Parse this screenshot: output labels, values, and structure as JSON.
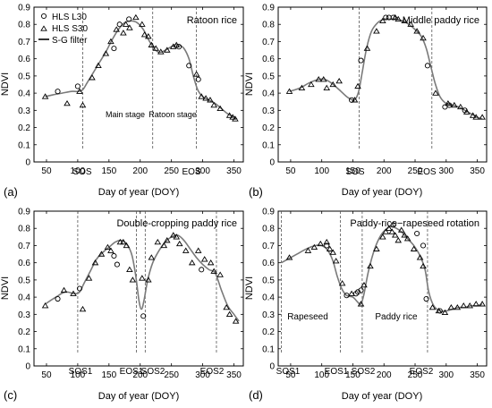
{
  "panels": [
    {
      "letter": "(a)",
      "title": "Ratoon rice",
      "xlabel": "Day of year (DOY)",
      "ylabel": "NDVI",
      "xlim": [
        30,
        365
      ],
      "ylim": [
        0,
        0.9
      ],
      "xticks": [
        50,
        100,
        150,
        200,
        250,
        300,
        350
      ],
      "xtick_labels": [
        "50",
        "100",
        "150",
        "200",
        "250",
        "300",
        "350"
      ],
      "yticks": [
        0,
        0.1,
        0.2,
        0.3,
        0.4,
        0.5,
        0.6,
        0.7,
        0.8,
        0.9
      ],
      "ytick_labels": [
        "0",
        "0.1",
        "0.2",
        "0.3",
        "0.4",
        "0.5",
        "0.6",
        "0.7",
        "0.8",
        "0.9"
      ],
      "legend": [
        "HLS L30",
        "HLS S30",
        "S-G filter"
      ],
      "vlines": [
        {
          "x": 108,
          "label": "SOS"
        },
        {
          "x": 220
        },
        {
          "x": 290,
          "label": "EOS"
        }
      ],
      "annotations": [
        {
          "text": "Main stage",
          "x": 162,
          "y": 0.44
        },
        {
          "text": "Ratoon stage",
          "x": 247,
          "y": 0.44
        }
      ]
    },
    {
      "letter": "(b)",
      "title": "Middle paddy rice",
      "xlabel": "Day of year (DOY)",
      "ylabel": "NDVI",
      "xlim": [
        30,
        365
      ],
      "ylim": [
        0,
        0.9
      ],
      "xticks": [
        50,
        100,
        150,
        200,
        250,
        300,
        350
      ],
      "xtick_labels": [
        "50",
        "100",
        "150",
        "200",
        "250",
        "300",
        "350"
      ],
      "yticks": [
        0,
        0.1,
        0.2,
        0.3,
        0.4,
        0.5,
        0.6,
        0.7,
        0.8,
        0.9
      ],
      "ytick_labels": [
        "0",
        "0.1",
        "0.2",
        "0.3",
        "0.4",
        "0.5",
        "0.6",
        "0.7",
        "0.8",
        "0.9"
      ],
      "vlines": [
        {
          "x": 160,
          "label": "SOS"
        },
        {
          "x": 277,
          "label": "EOS"
        }
      ]
    },
    {
      "letter": "(c)",
      "title": "Double-cropping paddy rice",
      "xlabel": "Day of year (DOY)",
      "ylabel": "NDVI",
      "xlim": [
        30,
        365
      ],
      "ylim": [
        0,
        0.9
      ],
      "xticks": [
        50,
        100,
        150,
        200,
        250,
        300,
        350
      ],
      "xtick_labels": [
        "50",
        "100",
        "150",
        "200",
        "250",
        "300",
        "350"
      ],
      "yticks": [
        0,
        0.1,
        0.2,
        0.3,
        0.4,
        0.5,
        0.6,
        0.7,
        0.8,
        0.9
      ],
      "ytick_labels": [
        "0",
        "0.1",
        "0.2",
        "0.3",
        "0.4",
        "0.5",
        "0.6",
        "0.7",
        "0.8",
        "0.9"
      ],
      "vlines": [
        {
          "x": 100,
          "label": "SOS1"
        },
        {
          "x": 194,
          "label": "EOS1"
        },
        {
          "x": 208,
          "label": "SOS2"
        },
        {
          "x": 322,
          "label": "EOS2"
        }
      ]
    },
    {
      "letter": "(d)",
      "title": "Paddy-rice−rapeseed rotation",
      "xlabel": "Day of year (DOY)",
      "ylabel": "NDVI",
      "xlim": [
        30,
        365
      ],
      "ylim": [
        0,
        0.9
      ],
      "xticks": [
        50,
        100,
        150,
        200,
        250,
        300,
        350
      ],
      "xtick_labels": [
        "50",
        "100",
        "150",
        "200",
        "250",
        "300",
        "350"
      ],
      "yticks": [
        0,
        0.1,
        0.2,
        0.3,
        0.4,
        0.5,
        0.6,
        0.7,
        0.8,
        0.9
      ],
      "ytick_labels": [
        "0",
        "0.1",
        "0.2",
        "0.3",
        "0.4",
        "0.5",
        "0.6",
        "0.7",
        "0.8",
        "0.9"
      ],
      "vlines": [
        {
          "x": 35,
          "label": "SOS1"
        },
        {
          "x": 130,
          "label": "EOS1"
        },
        {
          "x": 165,
          "label": "SOS2"
        },
        {
          "x": 270,
          "label": "EOS2"
        }
      ],
      "annotations": [
        {
          "text": "Rapeseed",
          "x": 83,
          "y": 0.27
        },
        {
          "text": "Paddy rice",
          "x": 218,
          "y": 0.27
        }
      ]
    }
  ],
  "chart_data": [
    {
      "type": "scatter",
      "title": "Ratoon rice",
      "xlabel": "Day of year (DOY)",
      "ylabel": "NDVI",
      "xlim": [
        30,
        365
      ],
      "ylim": [
        0,
        0.9
      ],
      "series": [
        {
          "name": "HLS L30",
          "marker": "circle",
          "x": [
            68,
            100,
            158,
            167,
            182,
            262,
            278,
            293
          ],
          "y": [
            0.41,
            0.44,
            0.66,
            0.8,
            0.83,
            0.67,
            0.56,
            0.48
          ]
        },
        {
          "name": "HLS S30",
          "marker": "triangle",
          "x": [
            48,
            83,
            103,
            108,
            123,
            133,
            145,
            153,
            162,
            173,
            177,
            183,
            193,
            203,
            207,
            213,
            218,
            225,
            233,
            243,
            253,
            258,
            290,
            298,
            305,
            312,
            318,
            328,
            343,
            348,
            352
          ],
          "y": [
            0.38,
            0.34,
            0.41,
            0.33,
            0.49,
            0.56,
            0.63,
            0.7,
            0.77,
            0.75,
            0.8,
            0.78,
            0.84,
            0.8,
            0.74,
            0.73,
            0.68,
            0.66,
            0.64,
            0.65,
            0.67,
            0.68,
            0.51,
            0.38,
            0.37,
            0.36,
            0.33,
            0.31,
            0.27,
            0.26,
            0.25
          ]
        },
        {
          "name": "S-G filter",
          "marker": "line",
          "x": [
            48,
            60,
            75,
            90,
            100,
            108,
            115,
            125,
            135,
            145,
            155,
            165,
            175,
            185,
            195,
            205,
            212,
            220,
            228,
            235,
            245,
            255,
            262,
            270,
            278,
            285,
            292,
            300,
            310,
            320,
            330,
            340,
            350,
            355
          ],
          "y": [
            0.38,
            0.39,
            0.4,
            0.41,
            0.41,
            0.42,
            0.46,
            0.52,
            0.58,
            0.64,
            0.71,
            0.77,
            0.81,
            0.82,
            0.81,
            0.77,
            0.72,
            0.67,
            0.64,
            0.64,
            0.66,
            0.68,
            0.68,
            0.66,
            0.6,
            0.5,
            0.42,
            0.38,
            0.36,
            0.34,
            0.31,
            0.28,
            0.26,
            0.25
          ]
        }
      ]
    },
    {
      "type": "scatter",
      "title": "Middle paddy rice",
      "xlabel": "Day of year (DOY)",
      "ylabel": "NDVI",
      "xlim": [
        30,
        365
      ],
      "ylim": [
        0,
        0.9
      ],
      "series": [
        {
          "name": "HLS L30",
          "marker": "circle",
          "x": [
            148,
            163,
            203,
            208,
            215,
            270,
            298,
            305,
            330
          ],
          "y": [
            0.36,
            0.59,
            0.84,
            0.84,
            0.84,
            0.56,
            0.32,
            0.33,
            0.3
          ]
        },
        {
          "name": "HLS S30",
          "marker": "triangle",
          "x": [
            48,
            68,
            83,
            95,
            103,
            108,
            118,
            128,
            153,
            158,
            173,
            188,
            198,
            218,
            223,
            233,
            243,
            253,
            263,
            283,
            303,
            313,
            323,
            333,
            343,
            348,
            358
          ],
          "y": [
            0.41,
            0.43,
            0.45,
            0.48,
            0.48,
            0.43,
            0.45,
            0.47,
            0.36,
            0.44,
            0.66,
            0.76,
            0.82,
            0.84,
            0.83,
            0.82,
            0.8,
            0.76,
            0.72,
            0.4,
            0.34,
            0.33,
            0.32,
            0.29,
            0.27,
            0.26,
            0.26
          ]
        },
        {
          "name": "S-G filter",
          "marker": "line",
          "x": [
            48,
            65,
            80,
            95,
            105,
            115,
            128,
            140,
            150,
            155,
            160,
            165,
            172,
            180,
            190,
            200,
            210,
            220,
            230,
            240,
            250,
            260,
            268,
            275,
            282,
            290,
            300,
            310,
            320,
            330,
            340,
            350,
            358
          ],
          "y": [
            0.41,
            0.43,
            0.46,
            0.48,
            0.48,
            0.46,
            0.42,
            0.38,
            0.36,
            0.37,
            0.42,
            0.52,
            0.66,
            0.76,
            0.81,
            0.83,
            0.83,
            0.83,
            0.82,
            0.8,
            0.77,
            0.73,
            0.66,
            0.56,
            0.46,
            0.38,
            0.34,
            0.33,
            0.32,
            0.3,
            0.28,
            0.26,
            0.25
          ]
        }
      ]
    },
    {
      "type": "scatter",
      "title": "Double-cropping paddy rice",
      "xlabel": "Day of year (DOY)",
      "ylabel": "NDVI",
      "xlim": [
        30,
        365
      ],
      "ylim": [
        0,
        0.9
      ],
      "series": [
        {
          "name": "HLS L30",
          "marker": "circle",
          "x": [
            68,
            103,
            158,
            163,
            205,
            298
          ],
          "y": [
            0.39,
            0.45,
            0.64,
            0.59,
            0.29,
            0.56
          ]
        },
        {
          "name": "HLS S30",
          "marker": "triangle",
          "x": [
            48,
            78,
            93,
            108,
            118,
            128,
            138,
            148,
            153,
            168,
            173,
            178,
            183,
            188,
            203,
            213,
            218,
            228,
            238,
            243,
            253,
            258,
            263,
            273,
            283,
            293,
            303,
            313,
            318,
            328,
            338,
            343,
            353
          ],
          "y": [
            0.35,
            0.44,
            0.42,
            0.33,
            0.51,
            0.6,
            0.65,
            0.69,
            0.67,
            0.72,
            0.72,
            0.7,
            0.56,
            0.5,
            0.51,
            0.5,
            0.63,
            0.72,
            0.7,
            0.73,
            0.76,
            0.75,
            0.71,
            0.67,
            0.6,
            0.67,
            0.62,
            0.6,
            0.55,
            0.53,
            0.34,
            0.3,
            0.26
          ]
        },
        {
          "name": "S-G filter",
          "marker": "line",
          "x": [
            48,
            65,
            80,
            95,
            103,
            110,
            120,
            130,
            140,
            150,
            160,
            170,
            180,
            187,
            193,
            198,
            202,
            206,
            212,
            220,
            230,
            240,
            250,
            260,
            270,
            280,
            290,
            300,
            310,
            320,
            330,
            340,
            350,
            358
          ],
          "y": [
            0.36,
            0.4,
            0.43,
            0.42,
            0.43,
            0.48,
            0.55,
            0.62,
            0.66,
            0.69,
            0.72,
            0.73,
            0.7,
            0.64,
            0.52,
            0.38,
            0.33,
            0.38,
            0.5,
            0.6,
            0.67,
            0.72,
            0.75,
            0.76,
            0.73,
            0.68,
            0.63,
            0.59,
            0.56,
            0.54,
            0.44,
            0.35,
            0.3,
            0.26
          ]
        }
      ]
    },
    {
      "type": "scatter",
      "title": "Paddy-rice−rapeseed rotation",
      "xlabel": "Day of year (DOY)",
      "ylabel": "NDVI",
      "xlim": [
        30,
        365
      ],
      "ylim": [
        0,
        0.9
      ],
      "series": [
        {
          "name": "HLS L30",
          "marker": "circle",
          "x": [
            108,
            140,
            155,
            158,
            163,
            215,
            253,
            263,
            268,
            290
          ],
          "y": [
            0.7,
            0.41,
            0.42,
            0.43,
            0.44,
            0.82,
            0.77,
            0.7,
            0.39,
            0.32
          ]
        },
        {
          "name": "HLS S30",
          "marker": "triangle",
          "x": [
            48,
            78,
            88,
            98,
            108,
            113,
            118,
            123,
            133,
            148,
            163,
            168,
            178,
            188,
            198,
            203,
            208,
            213,
            218,
            223,
            228,
            233,
            238,
            248,
            258,
            263,
            278,
            288,
            298,
            308,
            318,
            328,
            338,
            348,
            358
          ],
          "y": [
            0.63,
            0.67,
            0.69,
            0.71,
            0.72,
            0.68,
            0.66,
            0.61,
            0.48,
            0.42,
            0.36,
            0.47,
            0.58,
            0.68,
            0.75,
            0.78,
            0.8,
            0.78,
            0.76,
            0.73,
            0.79,
            0.76,
            0.74,
            0.68,
            0.63,
            0.58,
            0.34,
            0.32,
            0.31,
            0.34,
            0.34,
            0.35,
            0.35,
            0.36,
            0.36
          ]
        },
        {
          "name": "S-G filter",
          "marker": "line",
          "x": [
            35,
            45,
            60,
            75,
            90,
            100,
            110,
            118,
            125,
            132,
            140,
            150,
            158,
            163,
            168,
            175,
            185,
            195,
            205,
            212,
            220,
            228,
            238,
            248,
            258,
            266,
            272,
            280,
            290,
            300,
            310,
            320,
            330,
            340,
            350,
            358
          ],
          "y": [
            0.6,
            0.62,
            0.65,
            0.68,
            0.7,
            0.7,
            0.67,
            0.61,
            0.52,
            0.45,
            0.41,
            0.4,
            0.37,
            0.36,
            0.42,
            0.55,
            0.68,
            0.76,
            0.8,
            0.81,
            0.8,
            0.78,
            0.74,
            0.7,
            0.64,
            0.56,
            0.43,
            0.35,
            0.32,
            0.32,
            0.33,
            0.34,
            0.34,
            0.35,
            0.35,
            0.36
          ]
        }
      ]
    }
  ]
}
